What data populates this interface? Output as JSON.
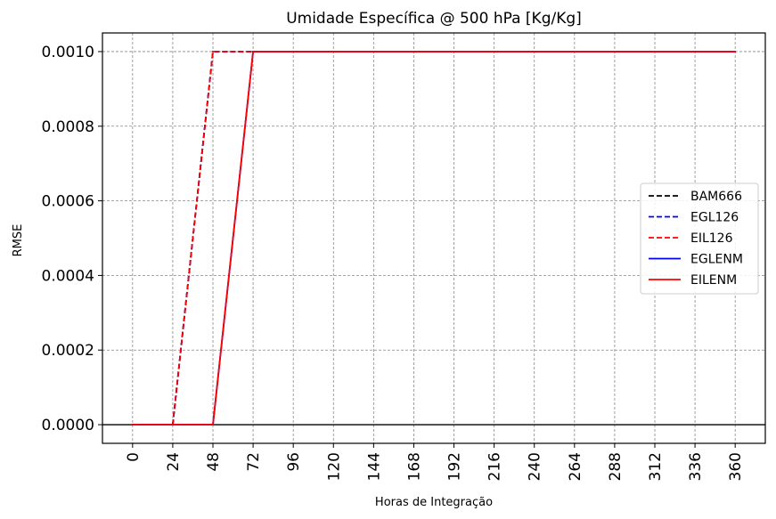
{
  "chart_data": {
    "type": "line",
    "title": "Umidade Específica @ 500 hPa [Kg/Kg]",
    "xlabel": "Horas de Integração",
    "ylabel": "RMSE",
    "x": [
      0,
      24,
      48,
      72,
      96,
      120,
      144,
      168,
      192,
      216,
      240,
      264,
      288,
      312,
      336,
      360
    ],
    "xticks": [
      "0",
      "24",
      "48",
      "72",
      "96",
      "120",
      "144",
      "168",
      "192",
      "216",
      "240",
      "264",
      "288",
      "312",
      "336",
      "360"
    ],
    "yticks": [
      "0.0000",
      "0.0002",
      "0.0004",
      "0.0006",
      "0.0008",
      "0.0010"
    ],
    "ytick_values": [
      0,
      0.0002,
      0.0004,
      0.0006,
      0.0008,
      0.001
    ],
    "xlim": [
      -18,
      378
    ],
    "ylim": [
      -5e-05,
      0.00105
    ],
    "grid": true,
    "zero_line": true,
    "legend_position": "center-right",
    "series": [
      {
        "name": "BAM666",
        "color": "#000000",
        "style": "dashed",
        "values": [
          0,
          0,
          0.001,
          0.001,
          0.001,
          0.001,
          0.001,
          0.001,
          0.001,
          0.001,
          0.001,
          0.001,
          0.001,
          0.001,
          0.001,
          0.001
        ]
      },
      {
        "name": "EGL126",
        "color": "#0000ff",
        "style": "dashed",
        "values": [
          0,
          0,
          0.001,
          0.001,
          0.001,
          0.001,
          0.001,
          0.001,
          0.001,
          0.001,
          0.001,
          0.001,
          0.001,
          0.001,
          0.001,
          0.001
        ]
      },
      {
        "name": "EIL126",
        "color": "#ff0000",
        "style": "dashed",
        "values": [
          0,
          0,
          0.001,
          0.001,
          0.001,
          0.001,
          0.001,
          0.001,
          0.001,
          0.001,
          0.001,
          0.001,
          0.001,
          0.001,
          0.001,
          0.001
        ]
      },
      {
        "name": "EGLENM",
        "color": "#0000ff",
        "style": "solid",
        "values": [
          0,
          0,
          0,
          0.001,
          0.001,
          0.001,
          0.001,
          0.001,
          0.001,
          0.001,
          0.001,
          0.001,
          0.001,
          0.001,
          0.001,
          0.001
        ]
      },
      {
        "name": "EILENM",
        "color": "#ff0000",
        "style": "solid",
        "values": [
          0,
          0,
          0,
          0.001,
          0.001,
          0.001,
          0.001,
          0.001,
          0.001,
          0.001,
          0.001,
          0.001,
          0.001,
          0.001,
          0.001,
          0.001
        ]
      }
    ]
  }
}
